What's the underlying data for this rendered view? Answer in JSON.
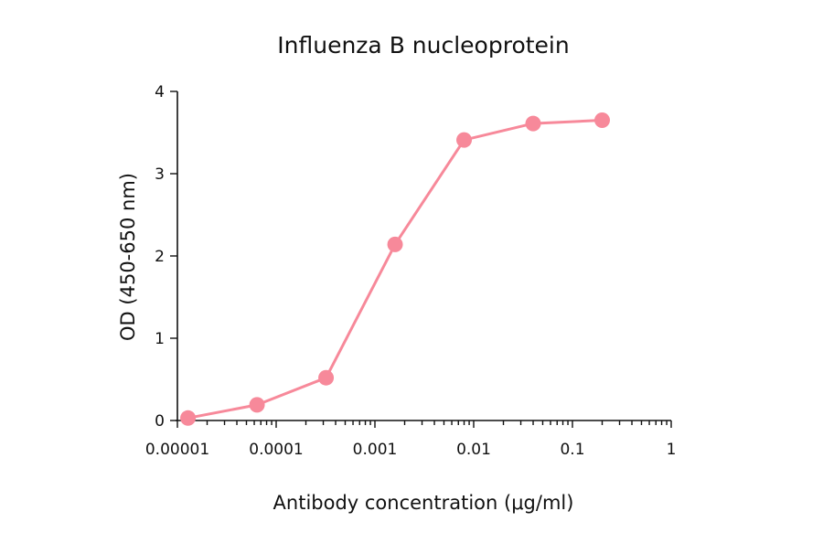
{
  "chart_data": {
    "type": "line",
    "title": "Influenza B nucleoprotein",
    "xlabel": "Antibody concentration (μg/ml)",
    "ylabel": "OD (450-650 nm)",
    "x_scale": "log",
    "xlim": [
      1e-05,
      1
    ],
    "ylim": [
      0,
      4
    ],
    "x_ticks": [
      1e-05,
      0.0001,
      0.001,
      0.01,
      0.1,
      1
    ],
    "x_tick_labels": [
      "0.00001",
      "0.0001",
      "0.001",
      "0.01",
      "0.1",
      "1"
    ],
    "y_ticks": [
      0,
      1,
      2,
      3,
      4
    ],
    "y_tick_labels": [
      "0",
      "1",
      "2",
      "3",
      "4"
    ],
    "grid": false,
    "legend": "none",
    "series": [
      {
        "color": "#f7899a",
        "x": [
          1.28e-05,
          6.4e-05,
          0.00032,
          0.0016,
          0.008,
          0.04,
          0.2
        ],
        "y": [
          0.03,
          0.19,
          0.52,
          2.14,
          3.41,
          3.61,
          3.65
        ]
      }
    ]
  }
}
